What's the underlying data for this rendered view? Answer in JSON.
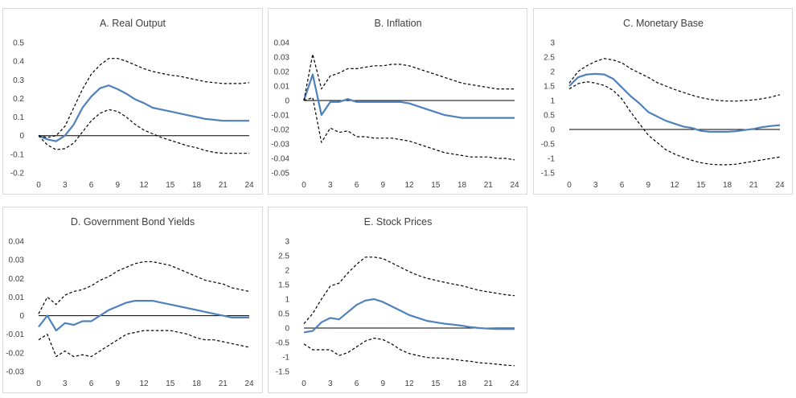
{
  "colors": {
    "series": "#4f81bd",
    "bands": "#000000",
    "zero_line": "#000000",
    "text": "#404040",
    "border": "#d9d9d9"
  },
  "chart_data": [
    {
      "type": "line",
      "title": "A. Real Output",
      "x": [
        0,
        1,
        2,
        3,
        4,
        5,
        6,
        7,
        8,
        9,
        10,
        11,
        12,
        13,
        14,
        15,
        16,
        17,
        18,
        19,
        20,
        21,
        22,
        23,
        24
      ],
      "xticks": [
        0,
        3,
        6,
        9,
        12,
        15,
        18,
        21,
        24
      ],
      "yticks": [
        -0.2,
        -0.1,
        0,
        0.1,
        0.2,
        0.3,
        0.4,
        0.5
      ],
      "yticklabels": [
        "-0.2",
        "-0.1",
        "0",
        "0.1",
        "0.2",
        "0.3",
        "0.4",
        "0.5"
      ],
      "ylim": [
        -0.2,
        0.5
      ],
      "series": [
        {
          "role": "estimate",
          "values": [
            0,
            -0.02,
            -0.03,
            0,
            0.06,
            0.15,
            0.21,
            0.255,
            0.27,
            0.25,
            0.225,
            0.195,
            0.175,
            0.15,
            0.14,
            0.13,
            0.12,
            0.11,
            0.1,
            0.09,
            0.085,
            0.08,
            0.08,
            0.08,
            0.08
          ]
        },
        {
          "role": "upper",
          "values": [
            0,
            -0.01,
            0,
            0.05,
            0.15,
            0.25,
            0.33,
            0.38,
            0.415,
            0.415,
            0.4,
            0.38,
            0.36,
            0.345,
            0.335,
            0.325,
            0.32,
            0.31,
            0.3,
            0.29,
            0.285,
            0.28,
            0.28,
            0.28,
            0.285
          ]
        },
        {
          "role": "lower",
          "values": [
            0,
            -0.05,
            -0.075,
            -0.07,
            -0.04,
            0.02,
            0.08,
            0.12,
            0.14,
            0.13,
            0.1,
            0.06,
            0.03,
            0.01,
            -0.01,
            -0.025,
            -0.04,
            -0.055,
            -0.065,
            -0.08,
            -0.09,
            -0.095,
            -0.095,
            -0.095,
            -0.095
          ]
        }
      ]
    },
    {
      "type": "line",
      "title": "B. Inflation",
      "x": [
        0,
        1,
        2,
        3,
        4,
        5,
        6,
        7,
        8,
        9,
        10,
        11,
        12,
        13,
        14,
        15,
        16,
        17,
        18,
        19,
        20,
        21,
        22,
        23,
        24
      ],
      "xticks": [
        0,
        3,
        6,
        9,
        12,
        15,
        18,
        21,
        24
      ],
      "yticks": [
        -0.05,
        -0.04,
        -0.03,
        -0.02,
        -0.01,
        0,
        0.01,
        0.02,
        0.03,
        0.04
      ],
      "yticklabels": [
        "-0.05",
        "-0.04",
        "-0.03",
        "-0.02",
        "-0.01",
        "0",
        "0.01",
        "0.02",
        "0.03",
        "0.04"
      ],
      "ylim": [
        -0.05,
        0.04
      ],
      "series": [
        {
          "role": "estimate",
          "values": [
            0,
            0.018,
            -0.01,
            -0.001,
            -0.001,
            0.001,
            -0.001,
            -0.001,
            -0.001,
            -0.001,
            -0.001,
            -0.001,
            -0.002,
            -0.004,
            -0.006,
            -0.008,
            -0.01,
            -0.011,
            -0.012,
            -0.012,
            -0.012,
            -0.012,
            -0.012,
            -0.012,
            -0.012
          ]
        },
        {
          "role": "upper",
          "values": [
            0,
            0.032,
            0.008,
            0.017,
            0.019,
            0.022,
            0.022,
            0.023,
            0.024,
            0.024,
            0.025,
            0.025,
            0.024,
            0.022,
            0.02,
            0.018,
            0.016,
            0.014,
            0.012,
            0.011,
            0.01,
            0.009,
            0.008,
            0.008,
            0.008
          ]
        },
        {
          "role": "lower",
          "values": [
            0,
            0.002,
            -0.029,
            -0.019,
            -0.022,
            -0.021,
            -0.025,
            -0.025,
            -0.026,
            -0.026,
            -0.026,
            -0.027,
            -0.028,
            -0.03,
            -0.032,
            -0.034,
            -0.036,
            -0.037,
            -0.038,
            -0.039,
            -0.039,
            -0.039,
            -0.04,
            -0.04,
            -0.041
          ]
        }
      ]
    },
    {
      "type": "line",
      "title": "C. Monetary Base",
      "x": [
        0,
        1,
        2,
        3,
        4,
        5,
        6,
        7,
        8,
        9,
        10,
        11,
        12,
        13,
        14,
        15,
        16,
        17,
        18,
        19,
        20,
        21,
        22,
        23,
        24
      ],
      "xticks": [
        0,
        3,
        6,
        9,
        12,
        15,
        18,
        21,
        24
      ],
      "yticks": [
        -1.5,
        -1,
        -0.5,
        0,
        0.5,
        1,
        1.5,
        2,
        2.5,
        3
      ],
      "yticklabels": [
        "-1.5",
        "-1",
        "-0.5",
        "0",
        "0.5",
        "1",
        "1.5",
        "2",
        "2.5",
        "3"
      ],
      "ylim": [
        -1.5,
        3
      ],
      "series": [
        {
          "role": "estimate",
          "values": [
            1.5,
            1.8,
            1.9,
            1.92,
            1.9,
            1.75,
            1.45,
            1.15,
            0.9,
            0.6,
            0.45,
            0.3,
            0.2,
            0.1,
            0.05,
            -0.05,
            -0.08,
            -0.08,
            -0.08,
            -0.06,
            -0.02,
            0.02,
            0.08,
            0.12,
            0.15
          ]
        },
        {
          "role": "upper",
          "values": [
            1.6,
            2,
            2.2,
            2.35,
            2.45,
            2.4,
            2.3,
            2.1,
            1.95,
            1.8,
            1.62,
            1.5,
            1.38,
            1.28,
            1.18,
            1.1,
            1.04,
            1,
            0.98,
            0.98,
            1,
            1.02,
            1.06,
            1.12,
            1.2
          ]
        },
        {
          "role": "lower",
          "values": [
            1.4,
            1.58,
            1.65,
            1.6,
            1.52,
            1.35,
            1.05,
            0.6,
            0.2,
            -0.2,
            -0.45,
            -0.7,
            -0.85,
            -0.97,
            -1.07,
            -1.15,
            -1.2,
            -1.22,
            -1.22,
            -1.2,
            -1.15,
            -1.1,
            -1.05,
            -1,
            -0.95
          ]
        }
      ]
    },
    {
      "type": "line",
      "title": "D. Government Bond Yields",
      "x": [
        0,
        1,
        2,
        3,
        4,
        5,
        6,
        7,
        8,
        9,
        10,
        11,
        12,
        13,
        14,
        15,
        16,
        17,
        18,
        19,
        20,
        21,
        22,
        23,
        24
      ],
      "xticks": [
        0,
        3,
        6,
        9,
        12,
        15,
        18,
        21,
        24
      ],
      "yticks": [
        -0.03,
        -0.02,
        -0.01,
        0,
        0.01,
        0.02,
        0.03,
        0.04
      ],
      "yticklabels": [
        "-0.03",
        "-0.02",
        "-0.01",
        "0",
        "0.01",
        "0.02",
        "0.03",
        "0.04"
      ],
      "ylim": [
        -0.03,
        0.04
      ],
      "series": [
        {
          "role": "estimate",
          "values": [
            -0.006,
            0,
            -0.008,
            -0.004,
            -0.005,
            -0.003,
            -0.003,
            0,
            0.003,
            0.005,
            0.007,
            0.008,
            0.008,
            0.008,
            0.007,
            0.006,
            0.005,
            0.004,
            0.003,
            0.002,
            0.001,
            0,
            -0.001,
            -0.001,
            -0.001
          ]
        },
        {
          "role": "upper",
          "values": [
            0.001,
            0.01,
            0.006,
            0.011,
            0.013,
            0.014,
            0.016,
            0.019,
            0.021,
            0.024,
            0.026,
            0.028,
            0.029,
            0.029,
            0.028,
            0.027,
            0.025,
            0.023,
            0.021,
            0.019,
            0.018,
            0.017,
            0.015,
            0.014,
            0.013
          ]
        },
        {
          "role": "lower",
          "values": [
            -0.013,
            -0.01,
            -0.022,
            -0.019,
            -0.022,
            -0.021,
            -0.022,
            -0.019,
            -0.016,
            -0.013,
            -0.01,
            -0.009,
            -0.008,
            -0.008,
            -0.008,
            -0.008,
            -0.009,
            -0.01,
            -0.012,
            -0.013,
            -0.013,
            -0.014,
            -0.015,
            -0.016,
            -0.017
          ]
        }
      ]
    },
    {
      "type": "line",
      "title": "E. Stock Prices",
      "x": [
        0,
        1,
        2,
        3,
        4,
        5,
        6,
        7,
        8,
        9,
        10,
        11,
        12,
        13,
        14,
        15,
        16,
        17,
        18,
        19,
        20,
        21,
        22,
        23,
        24
      ],
      "xticks": [
        0,
        3,
        6,
        9,
        12,
        15,
        18,
        21,
        24
      ],
      "yticks": [
        -1.5,
        -1,
        -0.5,
        0,
        0.5,
        1,
        1.5,
        2,
        2.5,
        3
      ],
      "yticklabels": [
        "-1.5",
        "-1",
        "-0.5",
        "0",
        "0.5",
        "1",
        "1.5",
        "2",
        "2.5",
        "3"
      ],
      "ylim": [
        -1.5,
        3
      ],
      "series": [
        {
          "role": "estimate",
          "values": [
            -0.15,
            -0.1,
            0.2,
            0.35,
            0.3,
            0.55,
            0.8,
            0.95,
            1,
            0.9,
            0.75,
            0.6,
            0.45,
            0.35,
            0.25,
            0.2,
            0.15,
            0.12,
            0.08,
            0.03,
            0,
            -0.02,
            -0.03,
            -0.03,
            -0.03
          ]
        },
        {
          "role": "upper",
          "values": [
            0.15,
            0.5,
            1,
            1.45,
            1.55,
            1.9,
            2.2,
            2.45,
            2.45,
            2.4,
            2.25,
            2.1,
            1.95,
            1.82,
            1.72,
            1.65,
            1.58,
            1.52,
            1.46,
            1.38,
            1.3,
            1.25,
            1.2,
            1.15,
            1.12
          ]
        },
        {
          "role": "lower",
          "values": [
            -0.55,
            -0.75,
            -0.75,
            -0.75,
            -0.95,
            -0.85,
            -0.65,
            -0.45,
            -0.35,
            -0.4,
            -0.55,
            -0.75,
            -0.88,
            -0.95,
            -1.02,
            -1.03,
            -1.05,
            -1.08,
            -1.12,
            -1.15,
            -1.2,
            -1.22,
            -1.25,
            -1.28,
            -1.3
          ]
        }
      ]
    }
  ]
}
